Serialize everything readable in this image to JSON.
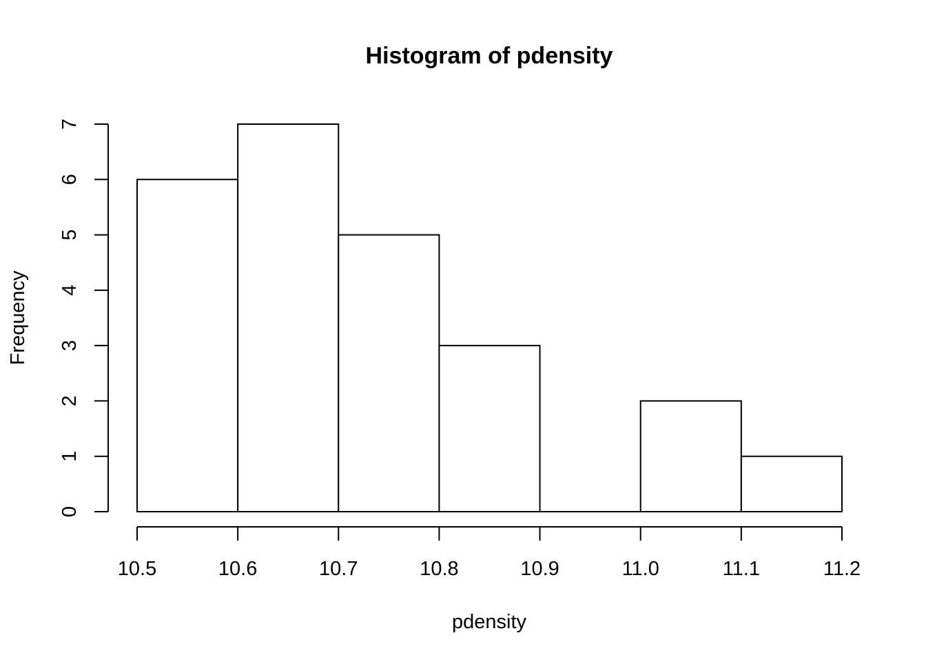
{
  "chart_data": {
    "type": "bar",
    "title": "Histogram of pdensity",
    "xlabel": "pdensity",
    "ylabel": "Frequency",
    "bins": [
      {
        "start": 10.5,
        "end": 10.6,
        "count": 6
      },
      {
        "start": 10.6,
        "end": 10.7,
        "count": 7
      },
      {
        "start": 10.7,
        "end": 10.8,
        "count": 5
      },
      {
        "start": 10.8,
        "end": 10.9,
        "count": 3
      },
      {
        "start": 10.9,
        "end": 11.0,
        "count": 0
      },
      {
        "start": 11.0,
        "end": 11.1,
        "count": 2
      },
      {
        "start": 11.1,
        "end": 11.2,
        "count": 1
      }
    ],
    "xlim": [
      10.5,
      11.2
    ],
    "ylim": [
      0,
      7
    ],
    "x_ticks": [
      "10.5",
      "10.6",
      "10.7",
      "10.8",
      "10.9",
      "11.0",
      "11.1",
      "11.2"
    ],
    "y_ticks": [
      "0",
      "1",
      "2",
      "3",
      "4",
      "5",
      "6",
      "7"
    ],
    "grid": false,
    "colors": {
      "bar_fill": "#ffffff",
      "bar_stroke": "#000000"
    }
  }
}
